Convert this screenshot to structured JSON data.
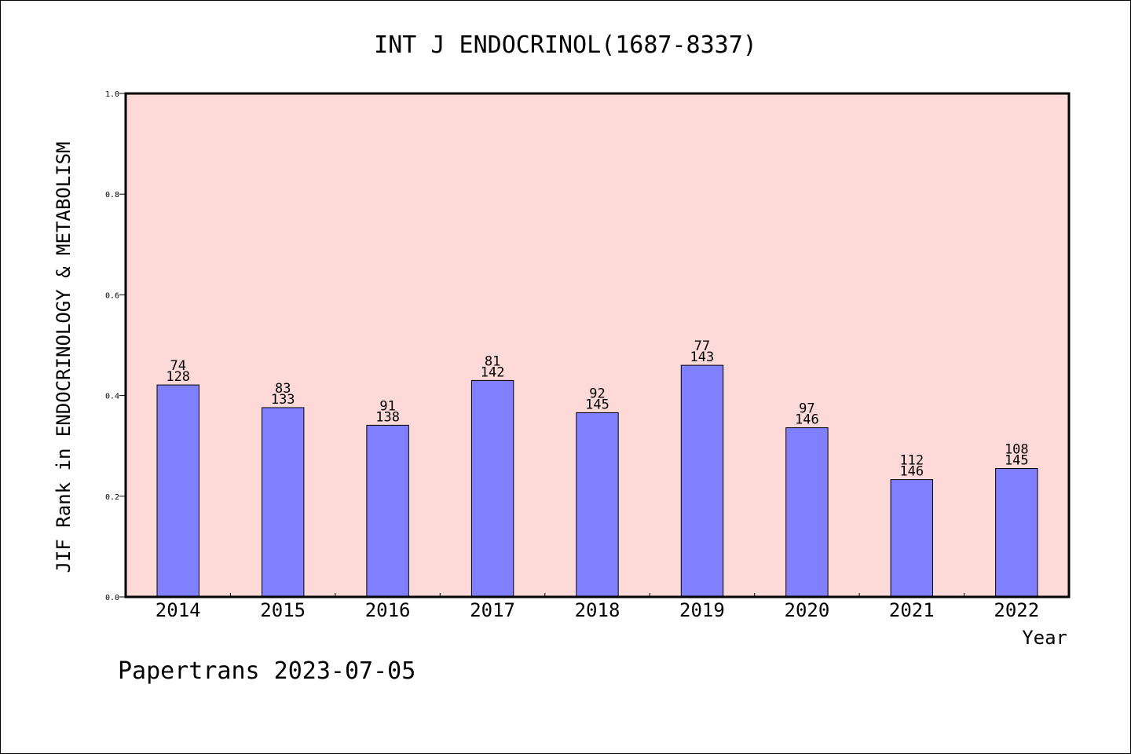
{
  "chart_data": {
    "type": "bar",
    "title": "INT J ENDOCRINOL(1687-8337)",
    "xlabel": "Year",
    "ylabel": "JIF Rank in ENDOCRINOLOGY & METABOLISM",
    "categories": [
      "2014",
      "2015",
      "2016",
      "2017",
      "2018",
      "2019",
      "2020",
      "2021",
      "2022"
    ],
    "values": [
      0.421,
      0.376,
      0.341,
      0.43,
      0.366,
      0.46,
      0.336,
      0.233,
      0.255
    ],
    "rank_labels": [
      "74",
      "83",
      "91",
      "81",
      "92",
      "77",
      "97",
      "112",
      "108"
    ],
    "total_labels": [
      "128",
      "133",
      "138",
      "142",
      "145",
      "143",
      "146",
      "146",
      "145"
    ],
    "ylim": [
      0,
      1.0
    ],
    "yticks": [
      "0.0",
      "0.2",
      "0.4",
      "0.6",
      "0.8",
      "1.0"
    ],
    "grid": false,
    "colors": {
      "plot_background": "#fddad8",
      "bar_fill": "#8080ff",
      "bar_stroke": "#000000"
    }
  },
  "footer": {
    "source": "Papertrans 2023-07-05"
  }
}
